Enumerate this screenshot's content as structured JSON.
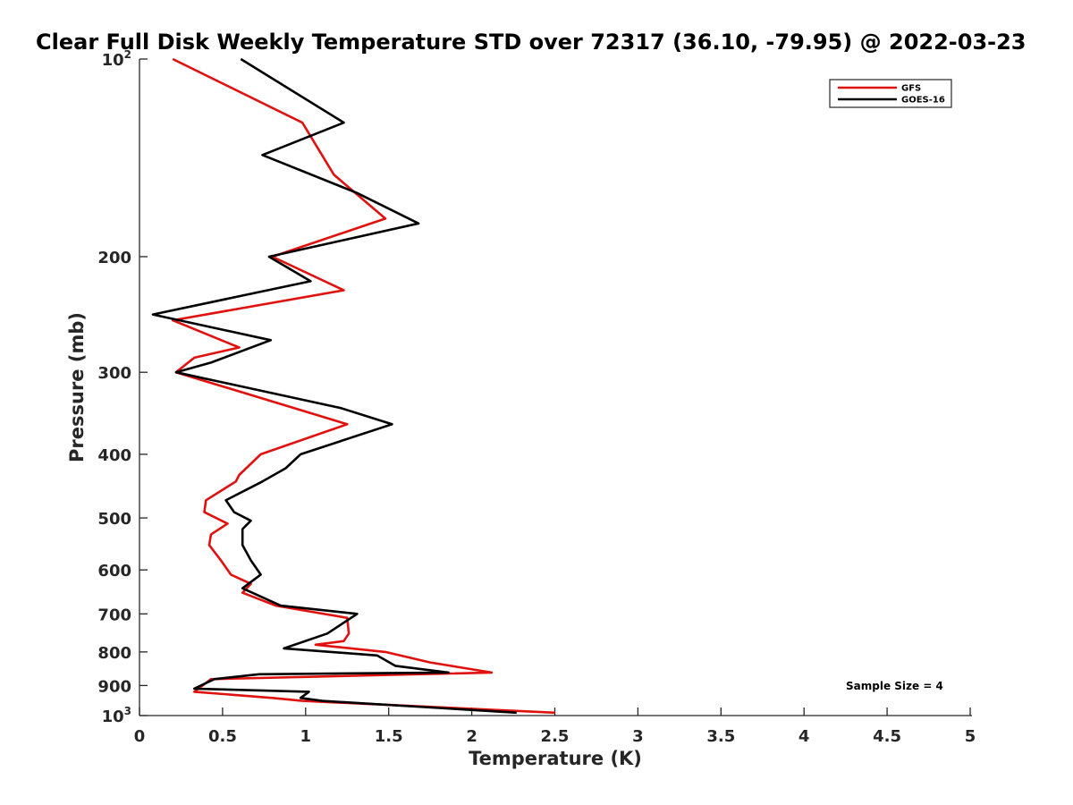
{
  "chart_data": {
    "type": "line",
    "title": "Clear Full Disk Weekly Temperature STD over 72317 (36.10, -79.95) @ 2022-03-23",
    "xlabel": "Temperature (K)",
    "ylabel": "Pressure (mb)",
    "xlim": [
      0,
      5
    ],
    "ylim": [
      100,
      1000
    ],
    "y_scale": "log",
    "y_reversed": true,
    "x_ticks": [
      "0",
      "0.5",
      "1",
      "1.5",
      "2",
      "2.5",
      "3",
      "3.5",
      "4",
      "4.5",
      "5"
    ],
    "y_ticks": [
      {
        "value": 100,
        "base": "10",
        "exp": "2"
      },
      {
        "value": 200,
        "label": "200"
      },
      {
        "value": 300,
        "label": "300"
      },
      {
        "value": 400,
        "label": "400"
      },
      {
        "value": 500,
        "label": "500"
      },
      {
        "value": 600,
        "label": "600"
      },
      {
        "value": 700,
        "label": "700"
      },
      {
        "value": 800,
        "label": "800"
      },
      {
        "value": 900,
        "label": "900"
      },
      {
        "value": 1000,
        "base": "10",
        "exp": "3"
      }
    ],
    "grid": false,
    "legend_position": "top-right",
    "annotation": "Sample Size = 4",
    "series": [
      {
        "name": "GFS",
        "color": "#e0120f",
        "points": [
          [
            0.2,
            100
          ],
          [
            0.98,
            125
          ],
          [
            1.17,
            150
          ],
          [
            1.48,
            175
          ],
          [
            0.8,
            200
          ],
          [
            1.23,
            225
          ],
          [
            0.2,
            250
          ],
          [
            0.6,
            275
          ],
          [
            0.33,
            285
          ],
          [
            0.22,
            300
          ],
          [
            1.25,
            360
          ],
          [
            0.73,
            400
          ],
          [
            0.6,
            430
          ],
          [
            0.58,
            440
          ],
          [
            0.4,
            470
          ],
          [
            0.39,
            490
          ],
          [
            0.53,
            510
          ],
          [
            0.43,
            530
          ],
          [
            0.42,
            550
          ],
          [
            0.49,
            580
          ],
          [
            0.55,
            610
          ],
          [
            0.67,
            630
          ],
          [
            0.62,
            650
          ],
          [
            0.82,
            680
          ],
          [
            1.25,
            710
          ],
          [
            1.26,
            750
          ],
          [
            1.23,
            770
          ],
          [
            1.06,
            780
          ],
          [
            1.48,
            800
          ],
          [
            1.75,
            830
          ],
          [
            2.12,
            860
          ],
          [
            0.43,
            880
          ],
          [
            0.38,
            900
          ],
          [
            0.33,
            920
          ],
          [
            0.8,
            940
          ],
          [
            0.98,
            950
          ],
          [
            2.5,
            990
          ]
        ]
      },
      {
        "name": "GOES-16",
        "color": "#000000",
        "points": [
          [
            0.61,
            100
          ],
          [
            1.23,
            125
          ],
          [
            0.74,
            140
          ],
          [
            1.31,
            160
          ],
          [
            1.68,
            178
          ],
          [
            0.78,
            200
          ],
          [
            1.03,
            218
          ],
          [
            0.08,
            245
          ],
          [
            0.79,
            268
          ],
          [
            0.43,
            290
          ],
          [
            0.22,
            300
          ],
          [
            1.21,
            340
          ],
          [
            1.52,
            360
          ],
          [
            0.97,
            400
          ],
          [
            0.88,
            420
          ],
          [
            0.74,
            440
          ],
          [
            0.52,
            470
          ],
          [
            0.57,
            490
          ],
          [
            0.67,
            505
          ],
          [
            0.62,
            520
          ],
          [
            0.62,
            550
          ],
          [
            0.67,
            580
          ],
          [
            0.73,
            610
          ],
          [
            0.62,
            640
          ],
          [
            0.85,
            680
          ],
          [
            1.31,
            700
          ],
          [
            1.13,
            750
          ],
          [
            0.87,
            790
          ],
          [
            1.43,
            810
          ],
          [
            1.54,
            840
          ],
          [
            1.86,
            860
          ],
          [
            0.72,
            865
          ],
          [
            0.45,
            880
          ],
          [
            0.33,
            910
          ],
          [
            1.02,
            920
          ],
          [
            0.97,
            940
          ],
          [
            1.1,
            950
          ],
          [
            2.27,
            990
          ]
        ]
      }
    ]
  }
}
